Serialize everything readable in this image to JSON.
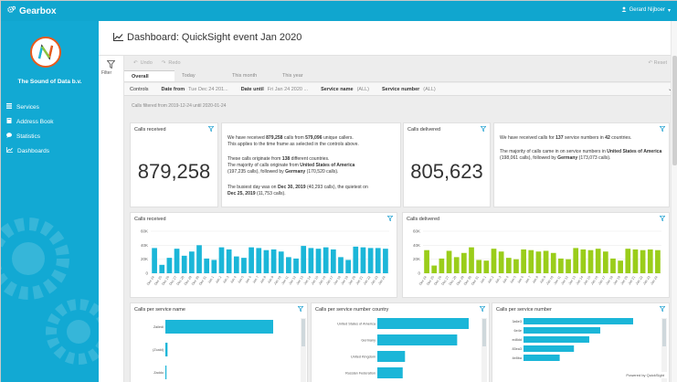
{
  "app": {
    "brand": "Gearbox",
    "user": "Gerard Nijboer",
    "org_name": "The Sound of Data b.v."
  },
  "menu": [
    {
      "label": "Services",
      "icon": "list-icon"
    },
    {
      "label": "Address Book",
      "icon": "book-icon"
    },
    {
      "label": "Statistics",
      "icon": "chat-icon"
    },
    {
      "label": "Dashboards",
      "icon": "chart-line-icon"
    }
  ],
  "page": {
    "title": "Dashboard: QuickSight event Jan 2020"
  },
  "toolbar": {
    "undo": "Undo",
    "redo": "Redo",
    "reset": "Reset",
    "filter": "Filter"
  },
  "tabs": [
    {
      "label": "Overall",
      "active": true
    },
    {
      "label": "Today",
      "active": false
    },
    {
      "label": "This month",
      "active": false
    },
    {
      "label": "This year",
      "active": false
    }
  ],
  "controls": {
    "label": "Controls",
    "date_from_label": "Date from",
    "date_from_value": "Tue Dec 24 201...",
    "date_until_label": "Date until",
    "date_until_value": "Fri Jan 24 2020 ...",
    "service_name_label": "Service name",
    "service_name_value": "(ALL)",
    "service_number_label": "Service number",
    "service_number_value": "(ALL)"
  },
  "filter_note": "Calls filtered from 2019-12-24 until 2020-01-24",
  "kpis": {
    "received_title": "Calls received",
    "received_value": "879,258",
    "delivered_title": "Calls delivered",
    "delivered_value": "805,623"
  },
  "narrative_received": {
    "p1a": "We have received ",
    "p1b": "879,258",
    "p1c": " calls from ",
    "p1d": "579,096",
    "p1e": " unique callers.",
    "p1f": "This applies to the time frame as selected in the controls above.",
    "p2a": "These calls originate from ",
    "p2b": "138",
    "p2c": " different countries.",
    "p2d": "The majority of calls originate from ",
    "p2e": "United States of America",
    "p2f": "(197,235 calls), followed by ",
    "p2g": "Germany",
    "p2h": " (170,520 calls).",
    "p3a": "The busiest day was on ",
    "p3b": "Dec 30, 2019",
    "p3c": " (40,293 calls), the quietest on ",
    "p3d": "Dec 25, 2019",
    "p3e": " (11,753 calls)."
  },
  "narrative_delivered": {
    "p1a": "We have received calls for ",
    "p1b": "137",
    "p1c": " service numbers in ",
    "p1d": "42",
    "p1e": " countries.",
    "p2a": "The majority of calls came in on service numbers in ",
    "p2b": "United States of America",
    "p2c": " (198,061 calls), followed by ",
    "p2d": "Germany",
    "p2e": " (173,073 calls)."
  },
  "colors": {
    "brand": "#10a6cf",
    "received_bar": "#1bb6d8",
    "delivered_bar": "#9acd1a"
  },
  "chart_data": [
    {
      "type": "bar",
      "title": "Calls received",
      "ylim": [
        0,
        60000
      ],
      "yticks": [
        "60K",
        "40K",
        "20K",
        "0"
      ],
      "categories": [
        "Dec 24",
        "Dec 25",
        "Dec 26",
        "Dec 27",
        "Dec 28",
        "Dec 29",
        "Dec 30",
        "Dec 31",
        "Jan 1",
        "Jan 2",
        "Jan 3",
        "Jan 4",
        "Jan 5",
        "Jan 6",
        "Jan 7",
        "Jan 8",
        "Jan 9",
        "Jan 10",
        "Jan 11",
        "Jan 12",
        "Jan 13",
        "Jan 14",
        "Jan 15",
        "Jan 16",
        "Jan 17",
        "Jan 18",
        "Jan 19",
        "Jan 20",
        "Jan 21",
        "Jan 22",
        "Jan 23",
        "Jan 24"
      ],
      "values": [
        36000,
        12000,
        22000,
        35000,
        25000,
        31000,
        40000,
        21000,
        19000,
        37000,
        34000,
        24000,
        22000,
        37000,
        36000,
        33000,
        34000,
        31000,
        23000,
        21000,
        39000,
        36000,
        35000,
        37000,
        34000,
        23000,
        19000,
        38000,
        37000,
        36000,
        36000,
        35000
      ]
    },
    {
      "type": "bar",
      "title": "Calls delivered",
      "ylim": [
        0,
        60000
      ],
      "yticks": [
        "60K",
        "40K",
        "20K",
        "0"
      ],
      "categories": [
        "Dec 24",
        "Dec 25",
        "Dec 26",
        "Dec 27",
        "Dec 28",
        "Dec 29",
        "Dec 30",
        "Dec 31",
        "Jan 1",
        "Jan 2",
        "Jan 3",
        "Jan 4",
        "Jan 5",
        "Jan 6",
        "Jan 7",
        "Jan 8",
        "Jan 9",
        "Jan 10",
        "Jan 11",
        "Jan 12",
        "Jan 13",
        "Jan 14",
        "Jan 15",
        "Jan 16",
        "Jan 17",
        "Jan 18",
        "Jan 19",
        "Jan 20",
        "Jan 21",
        "Jan 22",
        "Jan 23",
        "Jan 24"
      ],
      "values": [
        33000,
        11000,
        21000,
        32000,
        23000,
        29000,
        37000,
        19000,
        18000,
        35000,
        31000,
        22000,
        20000,
        34000,
        33000,
        31000,
        32000,
        29000,
        21000,
        20000,
        36000,
        34000,
        33000,
        35000,
        31000,
        21000,
        18000,
        35000,
        34000,
        33000,
        34000,
        33000
      ]
    },
    {
      "type": "bar",
      "orientation": "horizontal",
      "title": "Calls per service name",
      "categories": [
        "Zailedi",
        "(Zcald)",
        "Zaddo"
      ],
      "values": [
        100,
        2,
        1
      ]
    },
    {
      "type": "bar",
      "orientation": "horizontal",
      "title": "Calls per service number country",
      "categories": [
        "United States of America",
        "Germany",
        "United Kingdom",
        "Russian Federation"
      ],
      "values": [
        198061,
        173073,
        60000,
        55000
      ]
    },
    {
      "type": "bar",
      "orientation": "horizontal",
      "title": "Calls per service number",
      "categories": [
        "3a6e3",
        "6e4e",
        "ed8dd",
        "83ea3",
        "4e8ba"
      ],
      "values": [
        100,
        70,
        60,
        46,
        33
      ]
    }
  ],
  "powered_by": "Powered by QuickSight"
}
